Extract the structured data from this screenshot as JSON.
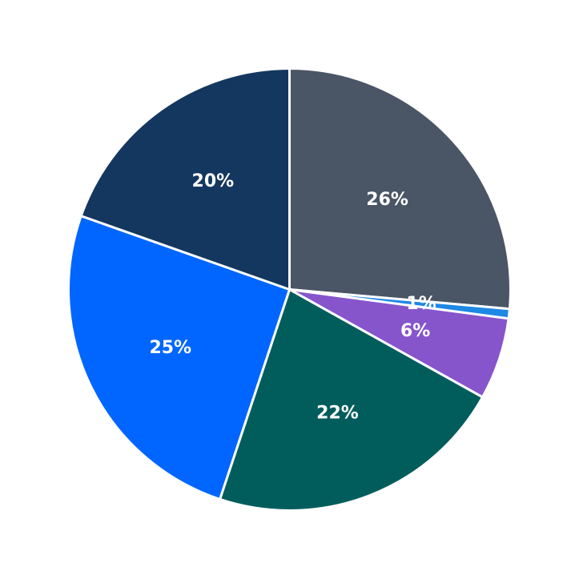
{
  "chart_data": {
    "type": "pie",
    "title": "",
    "start_angle_deg": 90,
    "direction": "clockwise",
    "slices": [
      {
        "value": 26.4,
        "label": "26%",
        "color": "#4a5566"
      },
      {
        "value": 0.7,
        "label": "1%",
        "color": "#1e88e5"
      },
      {
        "value": 6.0,
        "label": "6%",
        "color": "#8655cc"
      },
      {
        "value": 22.0,
        "label": "22%",
        "color": "#015d5c"
      },
      {
        "value": 25.3,
        "label": "25%",
        "color": "#0066ff"
      },
      {
        "value": 19.6,
        "label": "20%",
        "color": "#14375f"
      }
    ],
    "legend": "none"
  }
}
